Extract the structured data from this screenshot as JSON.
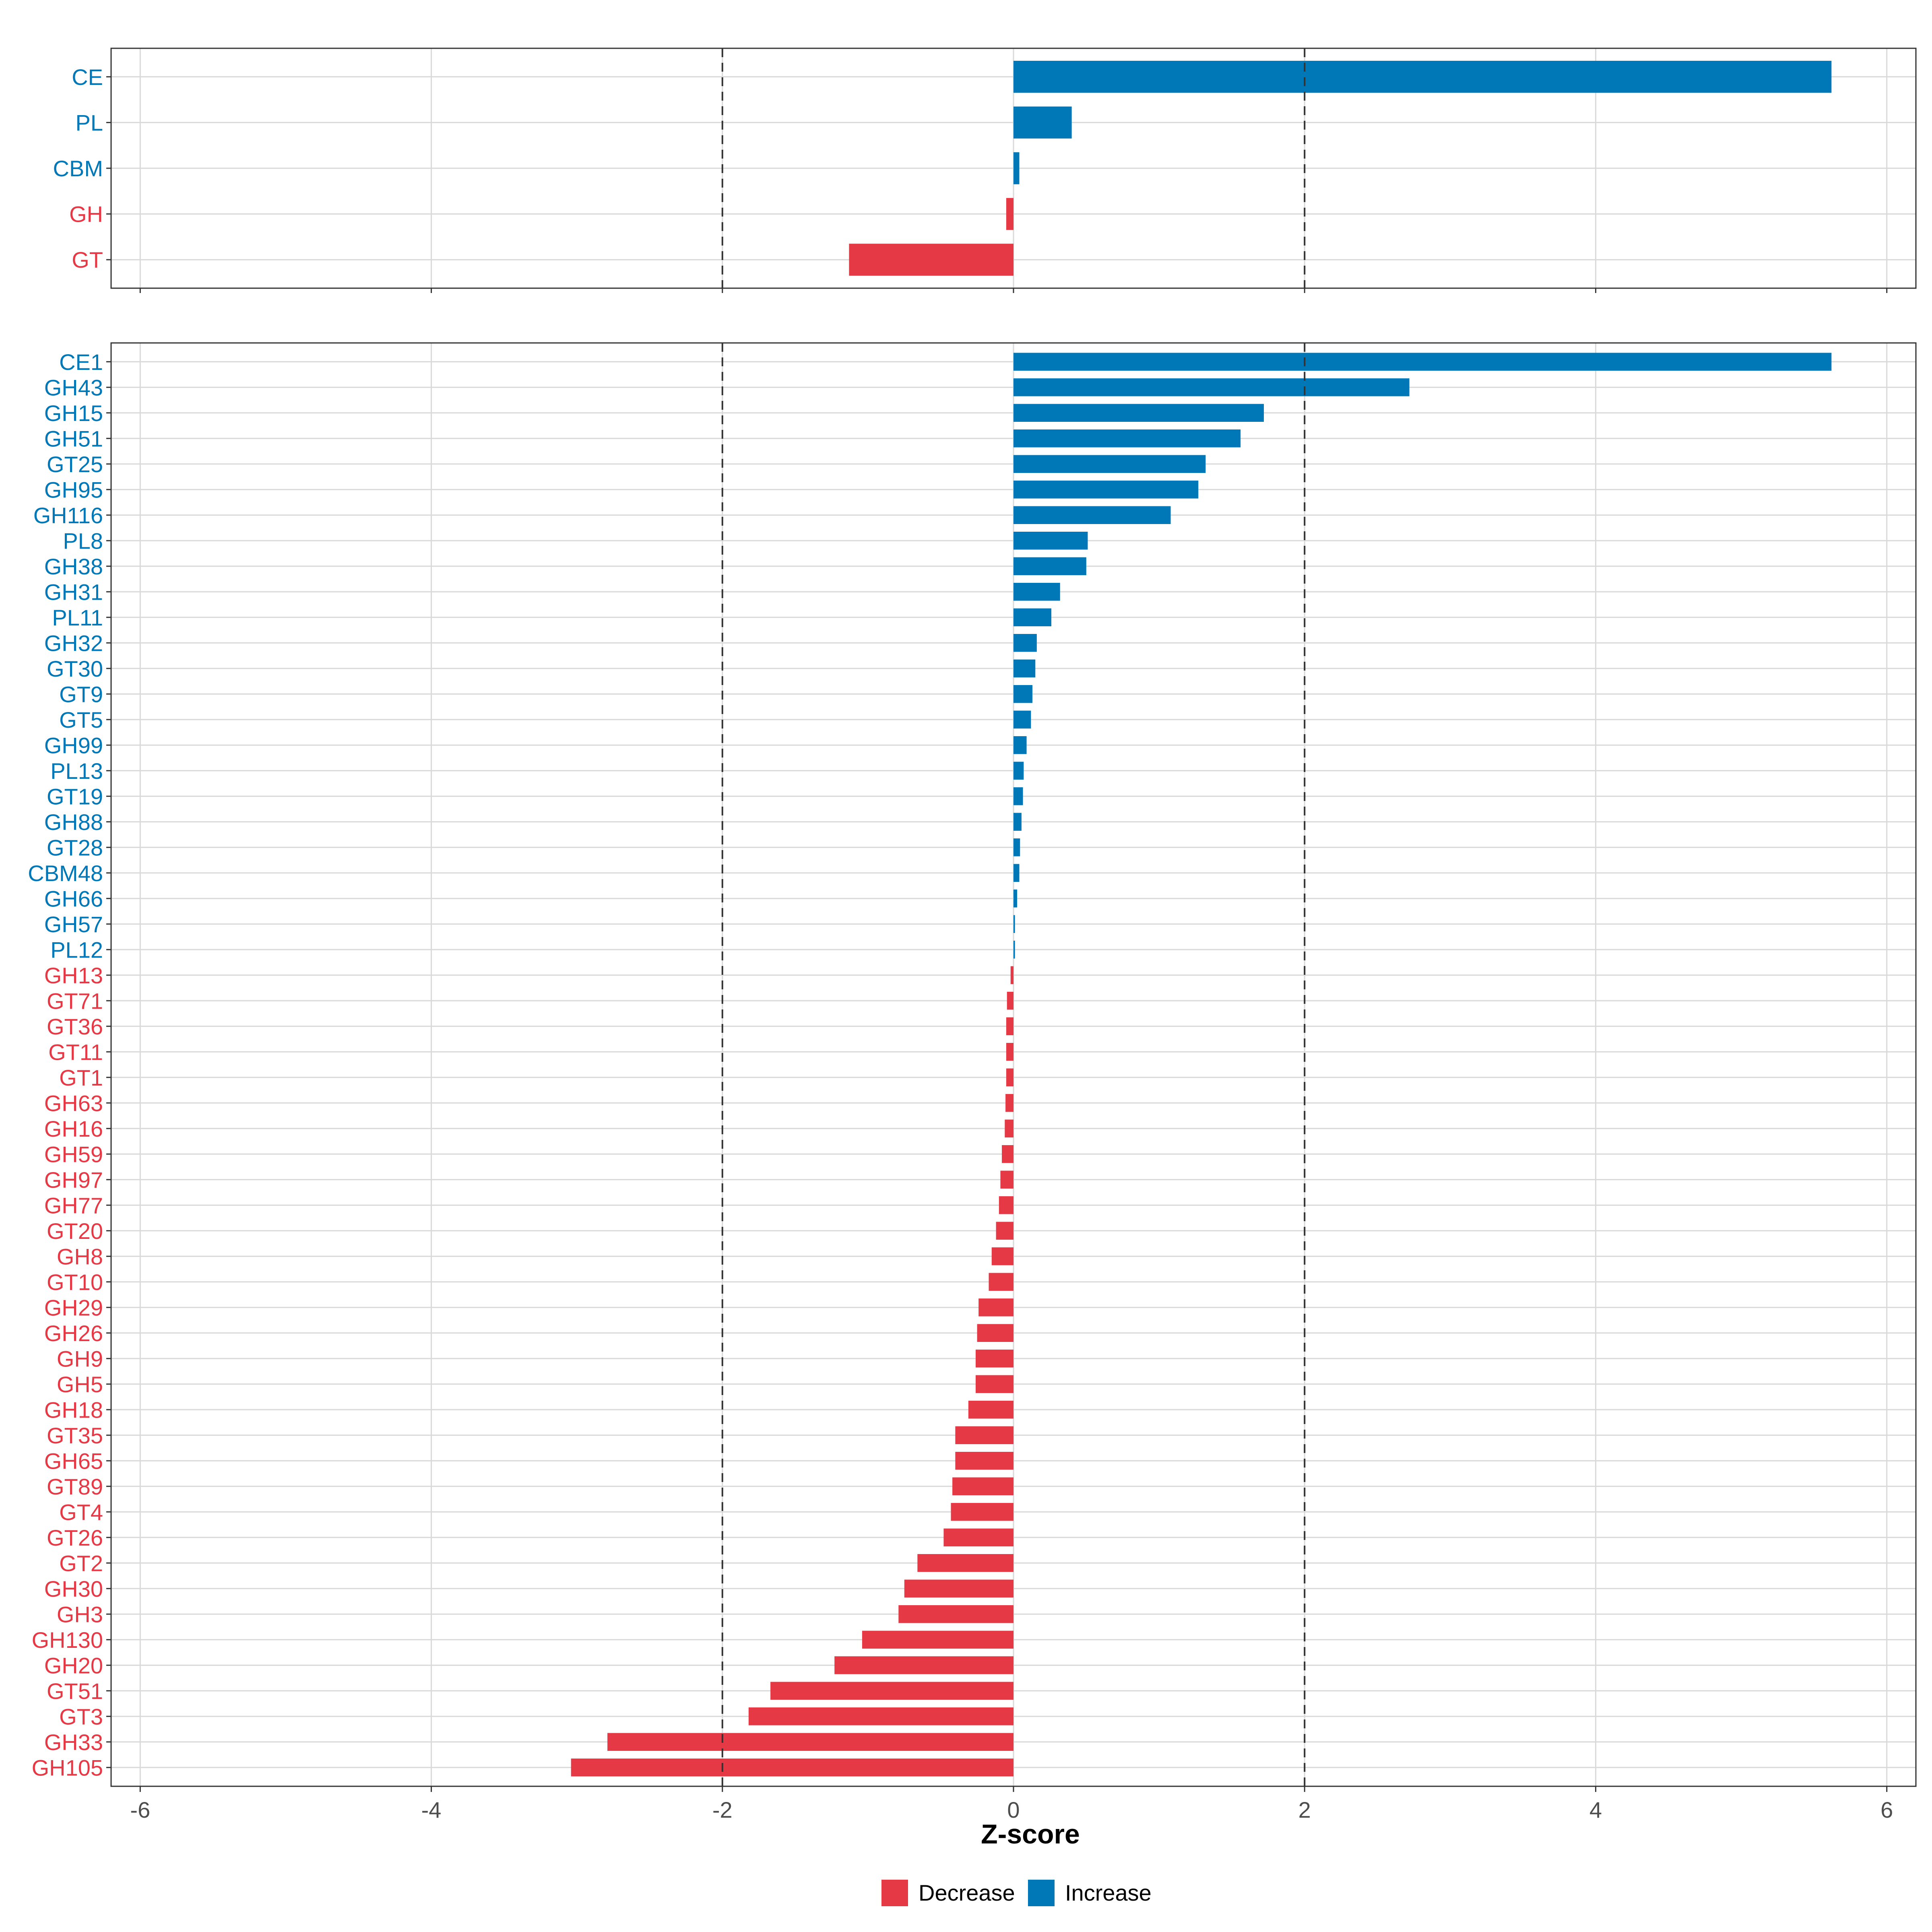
{
  "colors": {
    "decrease": "#e63946",
    "increase": "#0077b6",
    "grid": "#d9d9d9",
    "panel_border": "#333333",
    "reference_line": "#333333"
  },
  "legend": {
    "items": [
      {
        "label": "Decrease",
        "color_key": "decrease"
      },
      {
        "label": "Increase",
        "color_key": "increase"
      }
    ]
  },
  "chart_data": [
    {
      "type": "bar",
      "orientation": "horizontal",
      "panel": "class-level",
      "categories": [
        "CE",
        "PL",
        "CBM",
        "GH",
        "GT"
      ],
      "values": [
        5.62,
        0.4,
        0.04,
        -0.05,
        -1.13
      ],
      "xlim": [
        -6.2,
        6.2
      ],
      "reference_lines": [
        -2,
        2
      ],
      "grid": true
    },
    {
      "type": "bar",
      "orientation": "horizontal",
      "panel": "family-level",
      "categories": [
        "CE1",
        "GH43",
        "GH15",
        "GH51",
        "GT25",
        "GH95",
        "GH116",
        "PL8",
        "GH38",
        "GH31",
        "PL11",
        "GH32",
        "GT30",
        "GT9",
        "GT5",
        "GH99",
        "PL13",
        "GT19",
        "GH88",
        "GT28",
        "CBM48",
        "GH66",
        "GH57",
        "PL12",
        "GH13",
        "GT71",
        "GT36",
        "GT11",
        "GT1",
        "GH63",
        "GH16",
        "GH59",
        "GH97",
        "GH77",
        "GT20",
        "GH8",
        "GT10",
        "GH29",
        "GH26",
        "GH9",
        "GH5",
        "GH18",
        "GT35",
        "GH65",
        "GT89",
        "GT4",
        "GT26",
        "GT2",
        "GH30",
        "GH3",
        "GH130",
        "GH20",
        "GT51",
        "GT3",
        "GH33",
        "GH105"
      ],
      "values": [
        5.62,
        2.72,
        1.72,
        1.56,
        1.32,
        1.27,
        1.08,
        0.51,
        0.5,
        0.32,
        0.26,
        0.16,
        0.15,
        0.13,
        0.12,
        0.09,
        0.07,
        0.065,
        0.055,
        0.045,
        0.04,
        0.025,
        0.01,
        0.01,
        -0.02,
        -0.045,
        -0.05,
        -0.05,
        -0.05,
        -0.055,
        -0.06,
        -0.08,
        -0.09,
        -0.1,
        -0.12,
        -0.15,
        -0.17,
        -0.24,
        -0.25,
        -0.26,
        -0.26,
        -0.31,
        -0.4,
        -0.4,
        -0.42,
        -0.43,
        -0.48,
        -0.66,
        -0.75,
        -0.79,
        -1.04,
        -1.23,
        -1.67,
        -1.82,
        -2.79,
        -3.04
      ],
      "xlim": [
        -6.2,
        6.2
      ],
      "xlabel": "Z-score",
      "xticks": [
        -6,
        -4,
        -2,
        0,
        2,
        4,
        6
      ],
      "xtick_labels": [
        "-6",
        "-4",
        "-2",
        "0",
        "2",
        "4",
        "6"
      ],
      "reference_lines": [
        -2,
        2
      ],
      "grid": true
    }
  ]
}
